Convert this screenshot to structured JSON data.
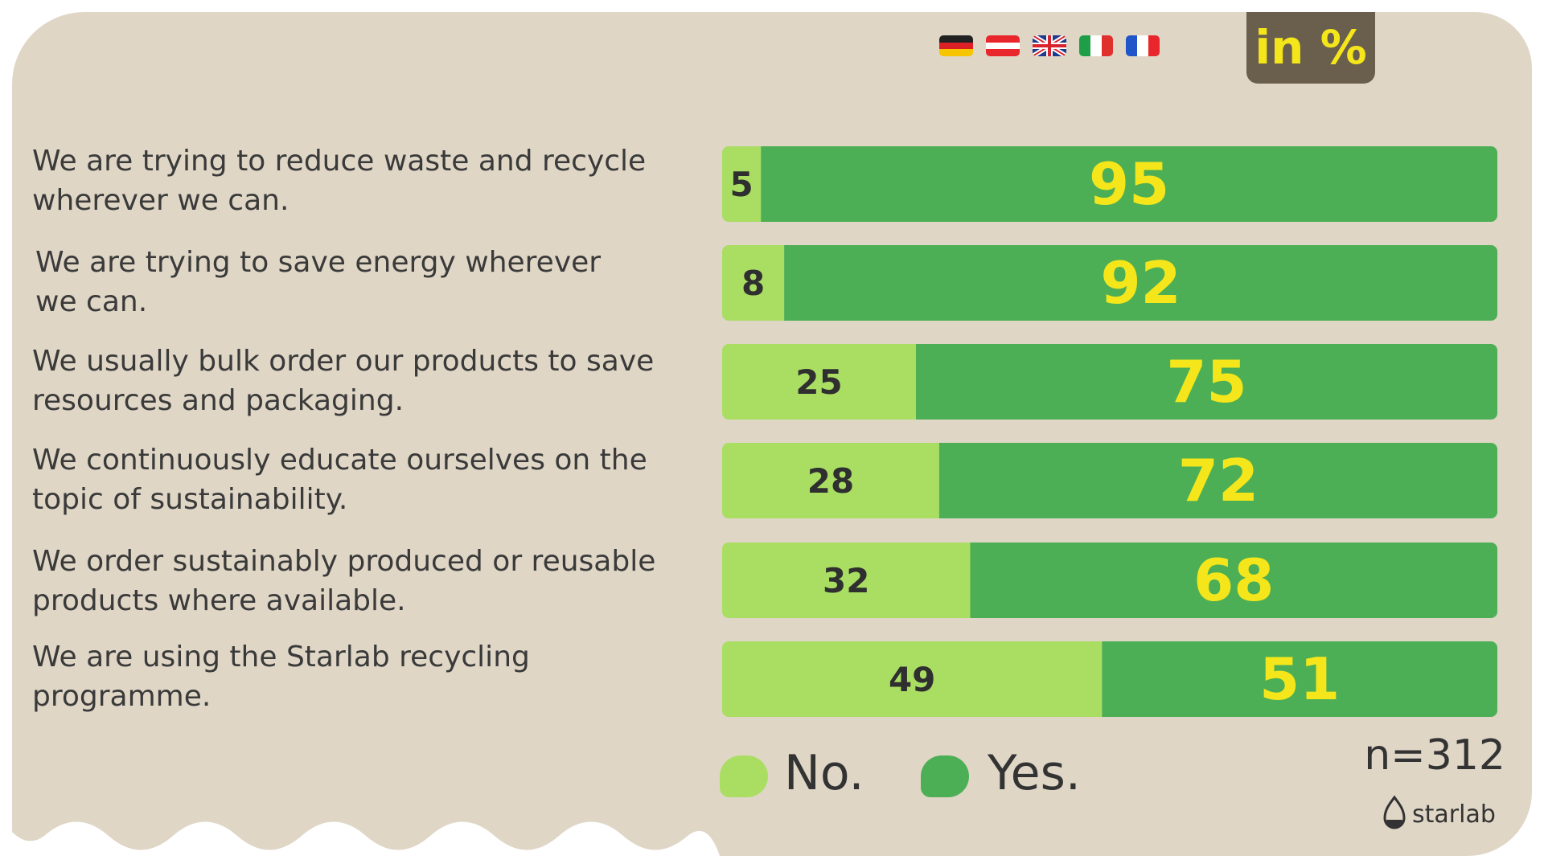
{
  "unit_badge": "in %",
  "flags": [
    "germany-flag",
    "austria-flag",
    "uk-flag",
    "italy-flag",
    "france-flag"
  ],
  "colors": {
    "no": "#a9de63",
    "yes": "#4caf55",
    "no_text": "#2f2f2f",
    "yes_text": "#f4e61b",
    "background": "#dfd6c6",
    "badge": "#6a5f4d"
  },
  "chart_data": {
    "type": "bar",
    "orientation": "horizontal",
    "stacked": true,
    "categories": [
      "We are trying to reduce waste and recycle wherever we can.",
      "We are trying to save energy wherever we can.",
      "We usually bulk order our products to save resources and packaging.",
      "We continuously educate ourselves on the topic of sustainability.",
      "We order sustainably produced or reusable products where available.",
      "We are using the Starlab recycling programme."
    ],
    "series": [
      {
        "name": "No.",
        "values": [
          5,
          8,
          25,
          28,
          32,
          49
        ]
      },
      {
        "name": "Yes.",
        "values": [
          95,
          92,
          75,
          72,
          68,
          51
        ]
      }
    ],
    "xlim": [
      0,
      100
    ],
    "grid": false,
    "legend_position": "bottom"
  },
  "legend": {
    "no": "No.",
    "yes": "Yes."
  },
  "sample_size": "n=312",
  "logo_text": "starlab"
}
